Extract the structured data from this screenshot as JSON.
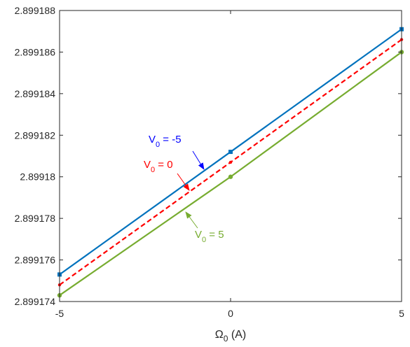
{
  "chart_data": {
    "type": "line",
    "xlabel": {
      "symbol": "Ω",
      "subscript": "0",
      "suffix": " (A)"
    },
    "ylabel": "",
    "x": [
      -5,
      0,
      5
    ],
    "xlim": [
      -5,
      5
    ],
    "ylim": [
      2.899174,
      2.899188
    ],
    "xticks": [
      -5,
      0,
      5
    ],
    "xtick_labels": [
      "-5",
      "0",
      "5"
    ],
    "yticks": [
      2.899174,
      2.899176,
      2.899178,
      2.89918,
      2.899182,
      2.899184,
      2.899186,
      2.899188
    ],
    "ytick_labels": [
      "2.899174",
      "2.899176",
      "2.899178",
      "2.89918",
      "2.899182",
      "2.899184",
      "2.899186",
      "2.899188"
    ],
    "grid": false,
    "series": [
      {
        "id": "v0-neg5",
        "values": [
          2.8991753,
          2.8991812,
          2.8991871
        ],
        "color": "#0072bd",
        "dash": "solid",
        "marker": "square"
      },
      {
        "id": "v0-0",
        "values": [
          2.8991748,
          2.8991807,
          2.8991866
        ],
        "color": "#ff0000",
        "dash": "dashed",
        "marker": "dot"
      },
      {
        "id": "v0-5",
        "values": [
          2.8991743,
          2.89918,
          2.899186
        ],
        "color": "#77ac30",
        "dash": "solid",
        "marker": "circle"
      }
    ],
    "annotations": [
      {
        "id": "annot-v0-neg5",
        "prefix": "V",
        "sub": "0",
        "suffix": " = -5",
        "color": "#0000ff"
      },
      {
        "id": "annot-v0-0",
        "prefix": "V",
        "sub": "0",
        "suffix": " = 0",
        "color": "#ff0000"
      },
      {
        "id": "annot-v0-5",
        "prefix": "V",
        "sub": "0",
        "suffix": " = 5",
        "color": "#77ac30"
      }
    ]
  }
}
